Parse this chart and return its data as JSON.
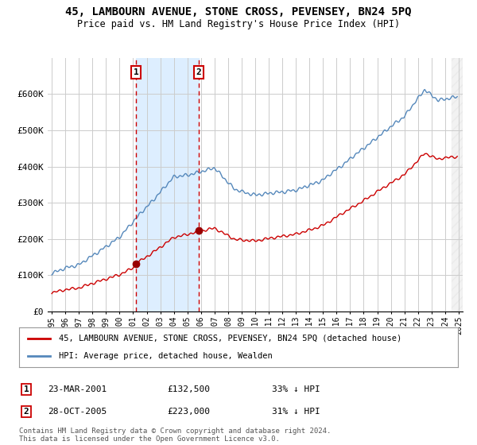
{
  "title": "45, LAMBOURN AVENUE, STONE CROSS, PEVENSEY, BN24 5PQ",
  "subtitle": "Price paid vs. HM Land Registry's House Price Index (HPI)",
  "legend_line1": "45, LAMBOURN AVENUE, STONE CROSS, PEVENSEY, BN24 5PQ (detached house)",
  "legend_line2": "HPI: Average price, detached house, Wealden",
  "transaction1_label": "1",
  "transaction1_date": "23-MAR-2001",
  "transaction1_price": "£132,500",
  "transaction1_hpi": "33% ↓ HPI",
  "transaction2_label": "2",
  "transaction2_date": "28-OCT-2005",
  "transaction2_price": "£223,000",
  "transaction2_hpi": "31% ↓ HPI",
  "footer": "Contains HM Land Registry data © Crown copyright and database right 2024.\nThis data is licensed under the Open Government Licence v3.0.",
  "line_color_red": "#cc0000",
  "line_color_blue": "#5588bb",
  "shade_color": "#ddeeff",
  "marker_color_red": "#990000",
  "background_color": "#ffffff",
  "grid_color": "#cccccc",
  "ylim": [
    0,
    700000
  ],
  "yticks": [
    0,
    100000,
    200000,
    300000,
    400000,
    500000,
    600000
  ],
  "ytick_labels": [
    "£0",
    "£100K",
    "£200K",
    "£300K",
    "£400K",
    "£500K",
    "£600K"
  ],
  "transaction1_x": 2001.22,
  "transaction1_y": 132500,
  "transaction2_x": 2005.83,
  "transaction2_y": 223000,
  "vline1_x": 2001.22,
  "vline2_x": 2005.83,
  "xlim_left": 1994.7,
  "xlim_right": 2025.3
}
